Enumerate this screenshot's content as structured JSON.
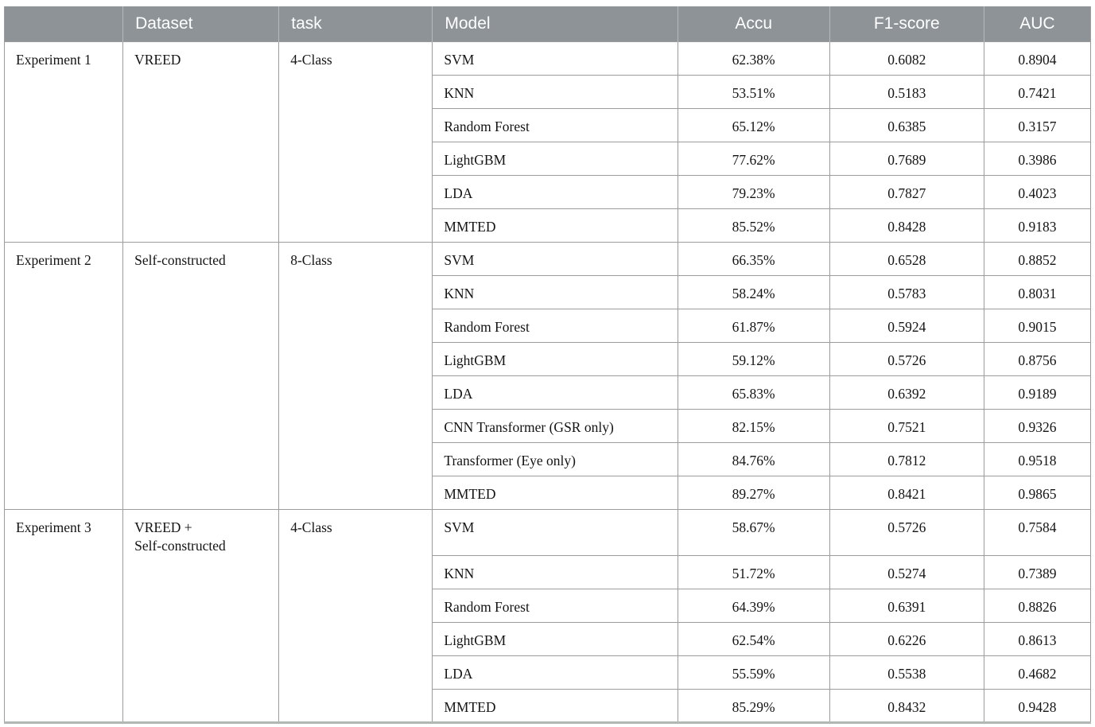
{
  "table": {
    "columns": [
      {
        "label": ""
      },
      {
        "label": "Dataset"
      },
      {
        "label": "task"
      },
      {
        "label": "Model"
      },
      {
        "label": "Accu"
      },
      {
        "label": "F1-score"
      },
      {
        "label": "AUC"
      }
    ],
    "groups": [
      {
        "experiment": "Experiment 1",
        "dataset": "VREED",
        "task": "4-Class",
        "rows": [
          {
            "model": "SVM",
            "accu": "62.38%",
            "f1": "0.6082",
            "auc": "0.8904"
          },
          {
            "model": "KNN",
            "accu": "53.51%",
            "f1": "0.5183",
            "auc": "0.7421"
          },
          {
            "model": "Random Forest",
            "accu": "65.12%",
            "f1": "0.6385",
            "auc": "0.3157"
          },
          {
            "model": "LightGBM",
            "accu": "77.62%",
            "f1": "0.7689",
            "auc": "0.3986"
          },
          {
            "model": "LDA",
            "accu": "79.23%",
            "f1": "0.7827",
            "auc": "0.4023"
          },
          {
            "model": "MMTED",
            "accu": "85.52%",
            "f1": "0.8428",
            "auc": "0.9183"
          }
        ]
      },
      {
        "experiment": "Experiment 2",
        "dataset": "Self-constructed",
        "task": "8-Class",
        "rows": [
          {
            "model": "SVM",
            "accu": "66.35%",
            "f1": "0.6528",
            "auc": "0.8852"
          },
          {
            "model": "KNN",
            "accu": "58.24%",
            "f1": "0.5783",
            "auc": "0.8031"
          },
          {
            "model": "Random Forest",
            "accu": "61.87%",
            "f1": "0.5924",
            "auc": "0.9015"
          },
          {
            "model": "LightGBM",
            "accu": "59.12%",
            "f1": "0.5726",
            "auc": "0.8756"
          },
          {
            "model": "LDA",
            "accu": "65.83%",
            "f1": "0.6392",
            "auc": "0.9189"
          },
          {
            "model": "CNN Transformer (GSR only)",
            "accu": "82.15%",
            "f1": "0.7521",
            "auc": "0.9326"
          },
          {
            "model": "Transformer (Eye only)",
            "accu": "84.76%",
            "f1": "0.7812",
            "auc": "0.9518"
          },
          {
            "model": "MMTED",
            "accu": "89.27%",
            "f1": "0.8421",
            "auc": "0.9865"
          }
        ]
      },
      {
        "experiment": "Experiment 3",
        "dataset": "VREED +\nSelf-constructed",
        "task": "4-Class",
        "rows": [
          {
            "model": "SVM",
            "accu": "58.67%",
            "f1": "0.5726",
            "auc": "0.7584"
          },
          {
            "model": "KNN",
            "accu": "51.72%",
            "f1": "0.5274",
            "auc": "0.7389"
          },
          {
            "model": "Random Forest",
            "accu": "64.39%",
            "f1": "0.6391",
            "auc": "0.8826"
          },
          {
            "model": "LightGBM",
            "accu": "62.54%",
            "f1": "0.6226",
            "auc": "0.8613"
          },
          {
            "model": "LDA",
            "accu": "55.59%",
            "f1": "0.5538",
            "auc": "0.4682"
          },
          {
            "model": "MMTED",
            "accu": "85.29%",
            "f1": "0.8432",
            "auc": "0.9428"
          }
        ]
      }
    ]
  }
}
